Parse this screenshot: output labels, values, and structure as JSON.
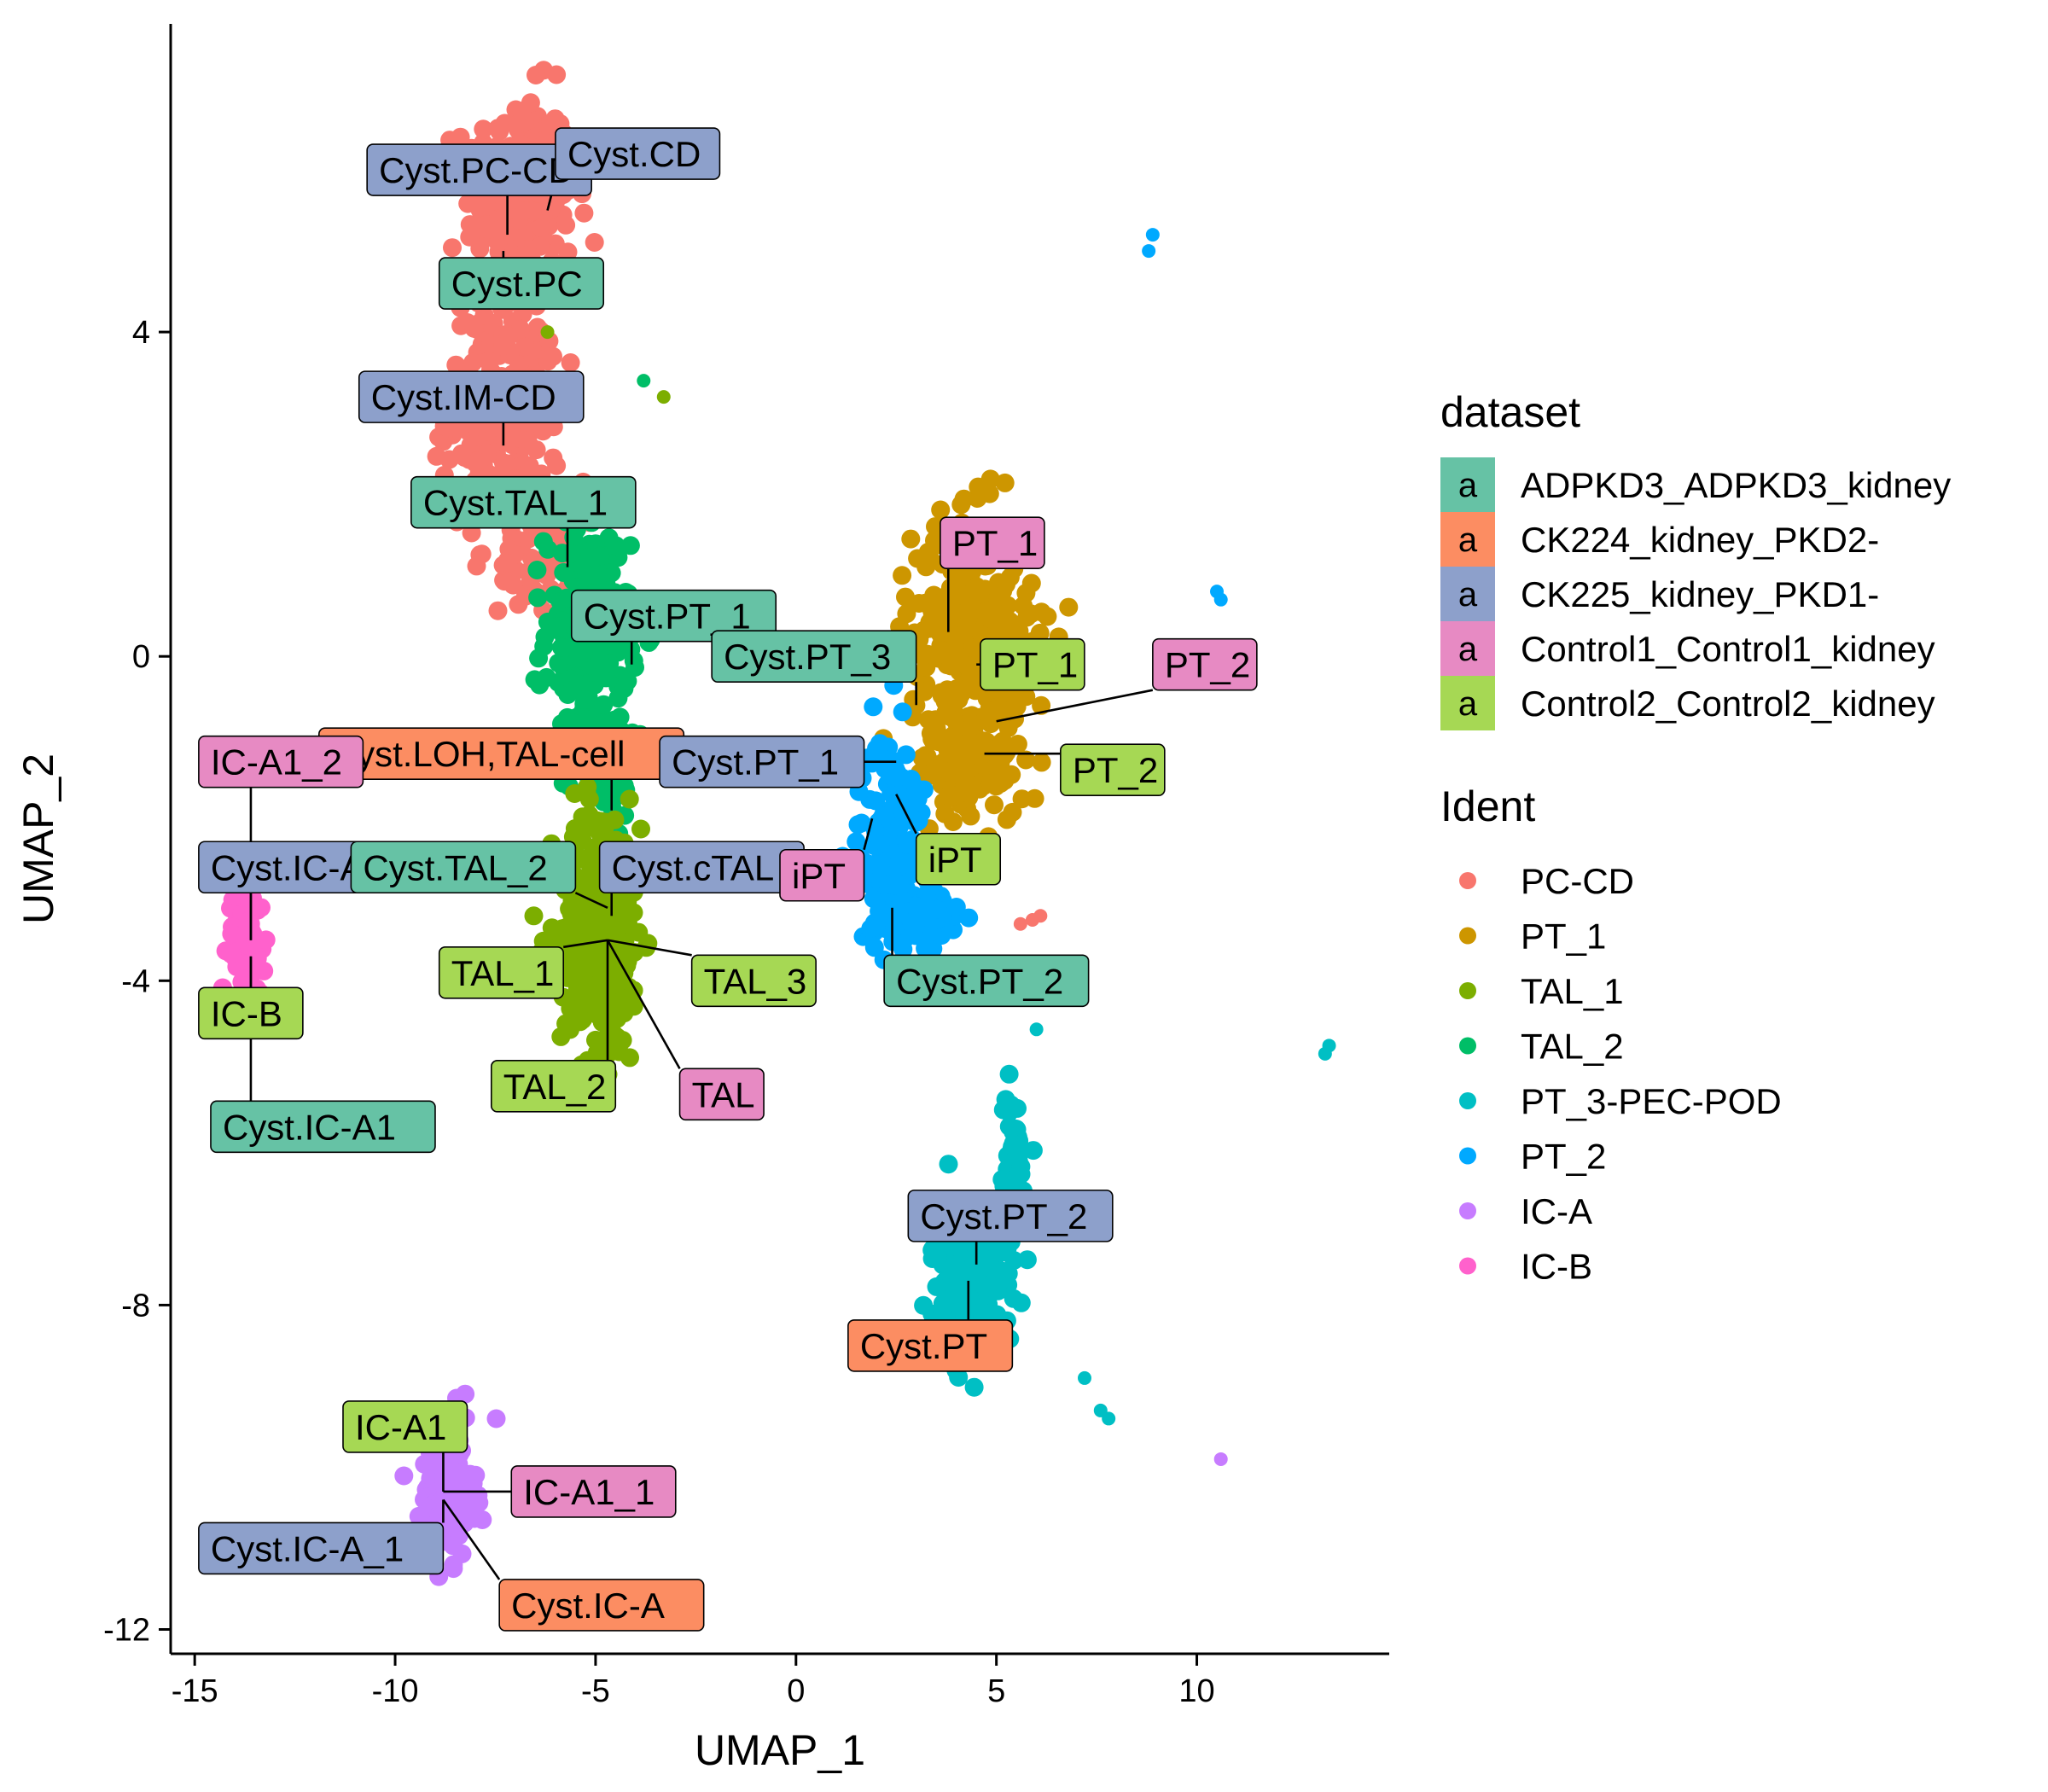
{
  "chart_data": {
    "type": "scatter",
    "title": "",
    "xlabel": "UMAP_1",
    "ylabel": "UMAP_2",
    "xlim": [
      -15.6,
      14.8
    ],
    "ylim": [
      -12.3,
      7.8
    ],
    "xticks": [
      -15,
      -10,
      -5,
      0,
      5,
      10
    ],
    "yticks": [
      -12,
      -8,
      -4,
      0,
      4
    ],
    "grid": false,
    "legend_position": "right",
    "legend": {
      "dataset": {
        "title": "dataset",
        "key_letter": "a",
        "items": [
          {
            "name": "ADPKD3_ADPKD3_kidney",
            "color": "#66C2A5"
          },
          {
            "name": "CK224_kidney_PKD2-",
            "color": "#FC8D62"
          },
          {
            "name": "CK225_kidney_PKD1-",
            "color": "#8DA0CB"
          },
          {
            "name": "Control1_Control1_kidney",
            "color": "#E78AC3"
          },
          {
            "name": "Control2_Control2_kidney",
            "color": "#A6D854"
          }
        ]
      },
      "ident": {
        "title": "Ident",
        "items": [
          {
            "name": "PC-CD",
            "color": "#F8766D"
          },
          {
            "name": "PT_1",
            "color": "#CD9600"
          },
          {
            "name": "TAL_1",
            "color": "#7CAE00"
          },
          {
            "name": "TAL_2",
            "color": "#00BE67"
          },
          {
            "name": "PT_3-PEC-POD",
            "color": "#00BFC4"
          },
          {
            "name": "PT_2",
            "color": "#00A9FF"
          },
          {
            "name": "IC-A",
            "color": "#C77CFF"
          },
          {
            "name": "IC-B",
            "color": "#FF61CC"
          }
        ]
      }
    },
    "clusters": [
      {
        "ident": "PC-CD",
        "cx": -6.9,
        "cy": 5.6,
        "sx": 0.9,
        "sy": 0.9,
        "n": 260
      },
      {
        "ident": "PC-CD",
        "cx": -7.3,
        "cy": 3.0,
        "sx": 0.95,
        "sy": 1.0,
        "n": 260
      },
      {
        "ident": "PC-CD",
        "cx": -6.5,
        "cy": 1.2,
        "sx": 0.6,
        "sy": 0.45,
        "n": 60
      },
      {
        "ident": "TAL_2",
        "cx": -5.2,
        "cy": 0.3,
        "sx": 0.7,
        "sy": 0.9,
        "n": 230
      },
      {
        "ident": "TAL_2",
        "cx": -4.8,
        "cy": -1.2,
        "sx": 0.55,
        "sy": 0.5,
        "n": 90
      },
      {
        "ident": "TAL_1",
        "cx": -4.9,
        "cy": -3.4,
        "sx": 0.7,
        "sy": 1.1,
        "n": 330
      },
      {
        "ident": "PT_1",
        "cx": 4.4,
        "cy": 0.3,
        "sx": 1.0,
        "sy": 0.95,
        "n": 320
      },
      {
        "ident": "PT_1",
        "cx": 4.4,
        "cy": -1.3,
        "sx": 0.9,
        "sy": 0.5,
        "n": 120
      },
      {
        "ident": "PT_2",
        "cx": 2.4,
        "cy": -2.3,
        "sx": 0.55,
        "sy": 0.9,
        "n": 170
      },
      {
        "ident": "PT_2",
        "cx": 3.2,
        "cy": -3.3,
        "sx": 0.6,
        "sy": 0.35,
        "n": 60
      },
      {
        "ident": "PT_3-PEC-POD",
        "cx": 4.4,
        "cy": -7.6,
        "sx": 0.7,
        "sy": 0.65,
        "n": 180
      },
      {
        "ident": "PT_3-PEC-POD",
        "cx": 5.4,
        "cy": -6.4,
        "sx": 0.25,
        "sy": 0.7,
        "n": 60
      },
      {
        "ident": "IC-B",
        "cx": -13.7,
        "cy": -3.5,
        "sx": 0.3,
        "sy": 0.45,
        "n": 90
      },
      {
        "ident": "IC-A",
        "cx": -8.7,
        "cy": -10.3,
        "sx": 0.45,
        "sy": 0.55,
        "n": 150
      }
    ],
    "outliers": [
      {
        "ident": "PT_2",
        "x": 8.9,
        "y": 5.2
      },
      {
        "ident": "PT_2",
        "x": 8.8,
        "y": 5.0
      },
      {
        "ident": "PT_2",
        "x": 10.5,
        "y": 0.8
      },
      {
        "ident": "PT_2",
        "x": 10.6,
        "y": 0.7
      },
      {
        "ident": "TAL_2",
        "x": -3.8,
        "y": 3.4
      },
      {
        "ident": "TAL_1",
        "x": -3.3,
        "y": 3.2
      },
      {
        "ident": "TAL_1",
        "x": -6.2,
        "y": 4.0
      },
      {
        "ident": "PT_3-PEC-POD",
        "x": 13.3,
        "y": -4.8
      },
      {
        "ident": "PT_3-PEC-POD",
        "x": 13.2,
        "y": -4.9
      },
      {
        "ident": "PT_3-PEC-POD",
        "x": 6.0,
        "y": -4.6
      },
      {
        "ident": "PT_3-PEC-POD",
        "x": 7.2,
        "y": -8.9
      },
      {
        "ident": "PT_3-PEC-POD",
        "x": 7.6,
        "y": -9.3
      },
      {
        "ident": "PT_3-PEC-POD",
        "x": 7.8,
        "y": -9.4
      },
      {
        "ident": "IC-A",
        "x": 10.6,
        "y": -9.9
      },
      {
        "ident": "PC-CD",
        "x": 5.6,
        "y": -3.3
      },
      {
        "ident": "PC-CD",
        "x": 5.9,
        "y": -3.25
      },
      {
        "ident": "PC-CD",
        "x": 6.1,
        "y": -3.2
      }
    ],
    "annotations": [
      {
        "label": "Cyst.PC-CD",
        "dataset": "CK225_kidney_PKD1-",
        "x": -7.2,
        "y": 5.2,
        "lx": -10.7,
        "ly": 6.0
      },
      {
        "label": "Cyst.CD",
        "dataset": "CK225_kidney_PKD1-",
        "x": -6.2,
        "y": 5.5,
        "lx": -6.0,
        "ly": 6.2
      },
      {
        "label": "Cyst.PC",
        "dataset": "ADPKD3_ADPKD3_kidney",
        "x": -7.3,
        "y": 5.0,
        "lx": -8.9,
        "ly": 4.6
      },
      {
        "label": "Cyst.IM-CD",
        "dataset": "CK225_kidney_PKD1-",
        "x": -7.3,
        "y": 2.6,
        "lx": -10.9,
        "ly": 3.2
      },
      {
        "label": "Cyst.TAL_1",
        "dataset": "ADPKD3_ADPKD3_kidney",
        "x": -5.7,
        "y": 1.1,
        "lx": -9.6,
        "ly": 1.9
      },
      {
        "label": "Cyst.PT_1",
        "dataset": "ADPKD3_ADPKD3_kidney",
        "x": -4.1,
        "y": -0.1,
        "lx": -5.6,
        "ly": 0.5
      },
      {
        "label": "Cyst.LOH,TAL-cell",
        "dataset": "CK224_kidney_PKD2-",
        "x": -4.6,
        "y": -1.9,
        "lx": -11.9,
        "ly": -1.2
      },
      {
        "label": "IC-A1_2",
        "dataset": "Control1_Control1_kidney",
        "x": -13.6,
        "y": -3.5,
        "lx": -14.9,
        "ly": -1.3
      },
      {
        "label": "Cyst.IC-A1_1",
        "dataset": "CK225_kidney_PKD1-",
        "x": -13.6,
        "y": -3.5,
        "lx": -14.9,
        "ly": -2.6
      },
      {
        "label": "Cyst.TAL_2",
        "dataset": "ADPKD3_ADPKD3_kidney",
        "x": -4.7,
        "y": -3.1,
        "lx": -11.1,
        "ly": -2.6
      },
      {
        "label": "Cyst.cTAL",
        "dataset": "CK225_kidney_PKD1-",
        "x": -4.6,
        "y": -3.2,
        "lx": -4.9,
        "ly": -2.6
      },
      {
        "label": "IC-B",
        "dataset": "Control2_Control2_kidney",
        "x": -13.6,
        "y": -3.7,
        "lx": -14.9,
        "ly": -4.4
      },
      {
        "label": "Cyst.IC-A1",
        "dataset": "ADPKD3_ADPKD3_kidney",
        "x": -13.6,
        "y": -3.7,
        "lx": -14.6,
        "ly": -5.8
      },
      {
        "label": "TAL_1",
        "dataset": "Control2_Control2_kidney",
        "x": -4.7,
        "y": -3.5,
        "lx": -8.9,
        "ly": -3.9
      },
      {
        "label": "TAL_3",
        "dataset": "Control2_Control2_kidney",
        "x": -4.7,
        "y": -3.5,
        "lx": -2.6,
        "ly": -4.0
      },
      {
        "label": "TAL_2",
        "dataset": "Control2_Control2_kidney",
        "x": -4.7,
        "y": -3.5,
        "lx": -7.6,
        "ly": -5.3
      },
      {
        "label": "TAL",
        "dataset": "Control1_Control1_kidney",
        "x": -4.7,
        "y": -3.5,
        "lx": -2.9,
        "ly": -5.4
      },
      {
        "label": "Cyst.PT_3",
        "dataset": "ADPKD3_ADPKD3_kidney",
        "x": 3.0,
        "y": -0.6,
        "lx": -2.1,
        "ly": 0.0
      },
      {
        "label": "PT_1",
        "dataset": "Control1_Control1_kidney",
        "x": 3.8,
        "y": 0.3,
        "lx": 3.6,
        "ly": 1.4
      },
      {
        "label": "PT_1",
        "dataset": "Control2_Control2_kidney",
        "x": 4.5,
        "y": -0.1,
        "lx": 4.6,
        "ly": -0.1
      },
      {
        "label": "PT_2",
        "dataset": "Control1_Control1_kidney",
        "x": 5.0,
        "y": -0.8,
        "lx": 8.9,
        "ly": -0.1
      },
      {
        "label": "PT_2",
        "dataset": "Control2_Control2_kidney",
        "x": 4.7,
        "y": -1.2,
        "lx": 6.6,
        "ly": -1.4
      },
      {
        "label": "Cyst.PT_1",
        "dataset": "CK225_kidney_PKD1-",
        "x": 2.5,
        "y": -1.3,
        "lx": -3.4,
        "ly": -1.3
      },
      {
        "label": "iPT",
        "dataset": "Control2_Control2_kidney",
        "x": 2.5,
        "y": -1.7,
        "lx": 3.0,
        "ly": -2.5
      },
      {
        "label": "iPT",
        "dataset": "Control1_Control1_kidney",
        "x": 1.9,
        "y": -2.0,
        "lx": -0.4,
        "ly": -2.7
      },
      {
        "label": "Cyst.PT_2",
        "dataset": "ADPKD3_ADPKD3_kidney",
        "x": 2.4,
        "y": -3.1,
        "lx": 2.2,
        "ly": -4.0
      },
      {
        "label": "Cyst.PT_2",
        "dataset": "CK225_kidney_PKD1-",
        "x": 4.5,
        "y": -7.5,
        "lx": 2.8,
        "ly": -6.9
      },
      {
        "label": "Cyst.PT",
        "dataset": "CK224_kidney_PKD2-",
        "x": 4.3,
        "y": -7.7,
        "lx": 1.3,
        "ly": -8.5
      },
      {
        "label": "IC-A1",
        "dataset": "Control2_Control2_kidney",
        "x": -8.8,
        "y": -10.3,
        "lx": -11.3,
        "ly": -9.5
      },
      {
        "label": "IC-A1_1",
        "dataset": "Control1_Control1_kidney",
        "x": -8.8,
        "y": -10.3,
        "lx": -7.1,
        "ly": -10.3
      },
      {
        "label": "Cyst.IC-A_1",
        "dataset": "CK225_kidney_PKD1-",
        "x": -8.8,
        "y": -10.4,
        "lx": -14.9,
        "ly": -11.0
      },
      {
        "label": "Cyst.IC-A",
        "dataset": "CK224_kidney_PKD2-",
        "x": -8.8,
        "y": -10.4,
        "lx": -7.4,
        "ly": -11.7
      }
    ]
  }
}
